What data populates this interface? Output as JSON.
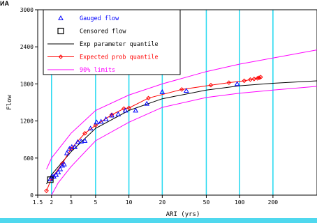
{
  "corner_label": "ИA",
  "colors": {
    "gridline": "#20d8f0",
    "gauged": "#0000ff",
    "censored": "#000000",
    "exp_param": "#000000",
    "expected_prob": "#ff0000",
    "limits": "#ff00ff",
    "bottom_strip": "#4fd8ee"
  },
  "chart_data": {
    "type": "scatter",
    "xlabel": "ARI (yrs)",
    "ylabel": "Flow",
    "x_scale": "log",
    "xlim": [
      1.5,
      500
    ],
    "ylim": [
      0,
      3000
    ],
    "x_ticks": [
      1.5,
      2,
      3,
      5,
      10,
      20,
      50,
      100,
      200
    ],
    "x_tick_labels": [
      "1.5",
      "2",
      "3",
      "5",
      "10",
      "20",
      "50",
      "100",
      "200"
    ],
    "y_ticks": [
      0,
      600,
      1200,
      1800,
      2400,
      3000
    ],
    "y_tick_labels": [
      "0",
      "600",
      "1200",
      "1800",
      "2400",
      "3000"
    ],
    "vertical_grid_at": [
      2,
      5,
      10,
      20,
      50,
      100,
      200
    ],
    "legend": {
      "placement": "top-left",
      "entries": [
        {
          "label": "Gauged flow",
          "marker": "triangle",
          "color": "#0000ff"
        },
        {
          "label": "Censored flow",
          "marker": "square",
          "color": "#000000"
        },
        {
          "label": "Exp parameter quantile",
          "marker": "line",
          "color": "#000000"
        },
        {
          "label": "Expected prob quantile",
          "marker": "line-diamond",
          "color": "#ff0000"
        },
        {
          "label": "90% limits",
          "marker": "line",
          "color": "#ff00ff"
        }
      ]
    },
    "gauged_flow": [
      {
        "x": 1.95,
        "y": 260
      },
      {
        "x": 2.03,
        "y": 300
      },
      {
        "x": 2.1,
        "y": 300
      },
      {
        "x": 2.2,
        "y": 330
      },
      {
        "x": 2.3,
        "y": 370
      },
      {
        "x": 2.4,
        "y": 420
      },
      {
        "x": 2.5,
        "y": 480
      },
      {
        "x": 2.6,
        "y": 500
      },
      {
        "x": 2.75,
        "y": 680
      },
      {
        "x": 2.9,
        "y": 750
      },
      {
        "x": 3.05,
        "y": 780
      },
      {
        "x": 3.25,
        "y": 780
      },
      {
        "x": 3.45,
        "y": 860
      },
      {
        "x": 3.7,
        "y": 870
      },
      {
        "x": 4.0,
        "y": 880
      },
      {
        "x": 4.5,
        "y": 1080
      },
      {
        "x": 5.1,
        "y": 1180
      },
      {
        "x": 5.6,
        "y": 1190
      },
      {
        "x": 6.2,
        "y": 1230
      },
      {
        "x": 7.0,
        "y": 1290
      },
      {
        "x": 8.0,
        "y": 1310
      },
      {
        "x": 9.3,
        "y": 1370
      },
      {
        "x": 11.5,
        "y": 1370
      },
      {
        "x": 14.5,
        "y": 1480
      },
      {
        "x": 20.0,
        "y": 1670
      },
      {
        "x": 33.0,
        "y": 1690
      },
      {
        "x": 95.0,
        "y": 1800
      }
    ],
    "censored_flow": [
      {
        "x": 1.95,
        "y": 250
      }
    ],
    "series": [
      {
        "name": "Exp parameter quantile",
        "x": [
          1.8,
          2,
          3,
          5,
          10,
          20,
          50,
          100,
          200,
          500
        ],
        "y": [
          180,
          330,
          700,
          1080,
          1370,
          1560,
          1700,
          1770,
          1810,
          1850
        ]
      },
      {
        "name": "Expected prob quantile",
        "x": [
          1.8,
          2,
          2.5,
          3,
          4,
          5,
          7,
          9,
          10,
          15,
          30,
          55,
          80,
          110,
          125,
          135,
          145,
          150,
          155
        ],
        "y": [
          70,
          270,
          510,
          750,
          1000,
          1130,
          1300,
          1400,
          1410,
          1570,
          1710,
          1780,
          1820,
          1850,
          1870,
          1880,
          1890,
          1900,
          1910
        ]
      },
      {
        "name": "90% limits (upper)",
        "x": [
          1.8,
          2,
          3,
          5,
          10,
          20,
          50,
          100,
          200,
          500
        ],
        "y": [
          420,
          600,
          1000,
          1370,
          1620,
          1800,
          2000,
          2120,
          2220,
          2350
        ]
      },
      {
        "name": "90% limits (lower)",
        "x": [
          2,
          2.3,
          3,
          5,
          10,
          20,
          50,
          100,
          200,
          500
        ],
        "y": [
          0,
          200,
          460,
          880,
          1180,
          1420,
          1580,
          1650,
          1700,
          1760
        ]
      }
    ]
  }
}
